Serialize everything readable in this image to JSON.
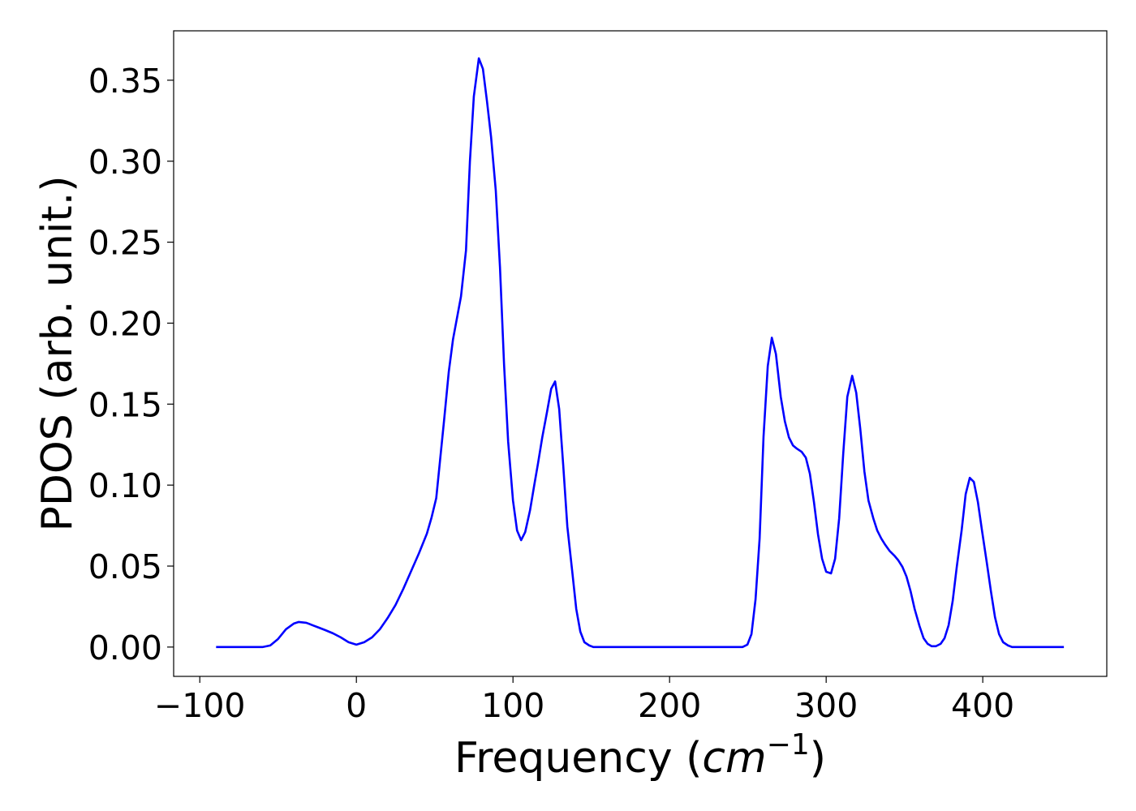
{
  "chart_data": {
    "type": "line",
    "xlabel": [
      "Frequency (",
      "cm",
      "−1",
      ")"
    ],
    "ylabel": "PDOS (arb. unit.)",
    "xlim": [
      -116.7,
      479.2
    ],
    "ylim": [
      -0.0181,
      0.3805
    ],
    "xticks": [
      {
        "value": -100,
        "label": "−100"
      },
      0,
      100,
      200,
      300,
      400
    ],
    "yticks": [
      {
        "value": 0,
        "label": "0.00"
      },
      {
        "value": 0.05,
        "label": "0.05"
      },
      {
        "value": 0.1,
        "label": "0.10"
      },
      {
        "value": 0.15,
        "label": "0.15"
      },
      {
        "value": 0.2,
        "label": "0.20"
      },
      {
        "value": 0.25,
        "label": "0.25"
      },
      {
        "value": 0.3,
        "label": "0.30"
      },
      {
        "value": 0.35,
        "label": "0.35"
      }
    ],
    "grid": false,
    "series": [
      {
        "color": "#0000ff",
        "x": [
          -89.6,
          -60,
          -55,
          -50,
          -45,
          -40,
          -36.8,
          -32,
          -28,
          -24,
          -20,
          -15,
          -10,
          -5,
          0,
          5,
          10,
          15,
          20,
          25,
          30,
          35,
          40,
          45,
          48,
          51,
          56,
          59,
          61.7,
          66.8,
          70,
          72.5,
          75,
          78.2,
          80.8,
          83.4,
          86,
          89,
          91.7,
          94.3,
          96.9,
          100,
          102.6,
          105.2,
          107.8,
          110.9,
          113.5,
          116,
          118.7,
          121.8,
          124.4,
          126.9,
          129.5,
          132.1,
          134.7,
          137.8,
          140.4,
          143,
          145.6,
          148.7,
          151.3,
          200,
          246.6,
          249.7,
          252.3,
          254.9,
          257.5,
          260,
          262.7,
          265.3,
          267.9,
          271,
          273.6,
          276.2,
          278.8,
          281.3,
          284.4,
          287,
          289.6,
          292.2,
          294.8,
          297.4,
          300,
          303.1,
          305.7,
          308.3,
          310.9,
          313.5,
          316.6,
          319.2,
          321.8,
          324.4,
          327,
          330.1,
          332.6,
          335.2,
          337.8,
          340.4,
          343.5,
          346.1,
          348.7,
          351.3,
          353.9,
          356.5,
          359.6,
          362.2,
          364.8,
          367.4,
          370,
          373.1,
          375.6,
          378.2,
          380.8,
          383.4,
          386.5,
          389.1,
          391.7,
          394.3,
          396.9,
          399.5,
          402.6,
          405.2,
          407.8,
          410.4,
          413,
          416.1,
          418.7,
          451.8
        ],
        "values": [
          0,
          0,
          0.001,
          0.005,
          0.011,
          0.0145,
          0.0155,
          0.015,
          0.0135,
          0.012,
          0.0105,
          0.0085,
          0.006,
          0.003,
          0.0015,
          0.003,
          0.006,
          0.011,
          0.018,
          0.026,
          0.036,
          0.047,
          0.058,
          0.07,
          0.08,
          0.092,
          0.14,
          0.17,
          0.19,
          0.2165,
          0.245,
          0.3,
          0.34,
          0.3635,
          0.357,
          0.337,
          0.315,
          0.282,
          0.2345,
          0.1745,
          0.127,
          0.0905,
          0.072,
          0.066,
          0.071,
          0.0845,
          0.0995,
          0.1135,
          0.1295,
          0.1455,
          0.1595,
          0.164,
          0.147,
          0.112,
          0.0745,
          0.047,
          0.0235,
          0.0095,
          0.003,
          0.001,
          0,
          0,
          0,
          0.0015,
          0.008,
          0.0295,
          0.067,
          0.13,
          0.1735,
          0.191,
          0.181,
          0.1545,
          0.1395,
          0.1295,
          0.1245,
          0.1225,
          0.1205,
          0.117,
          0.107,
          0.0895,
          0.0695,
          0.0545,
          0.0465,
          0.0455,
          0.0545,
          0.0795,
          0.1195,
          0.1545,
          0.1675,
          0.157,
          0.1345,
          0.1085,
          0.0905,
          0.0795,
          0.072,
          0.067,
          0.063,
          0.0595,
          0.0565,
          0.0535,
          0.0495,
          0.0435,
          0.0345,
          0.0235,
          0.013,
          0.0055,
          0.002,
          0.0005,
          0.0005,
          0.002,
          0.0055,
          0.0135,
          0.0285,
          0.0495,
          0.072,
          0.0945,
          0.1045,
          0.102,
          0.0895,
          0.072,
          0.052,
          0.0345,
          0.0185,
          0.008,
          0.003,
          0.001,
          0,
          0
        ]
      }
    ]
  }
}
